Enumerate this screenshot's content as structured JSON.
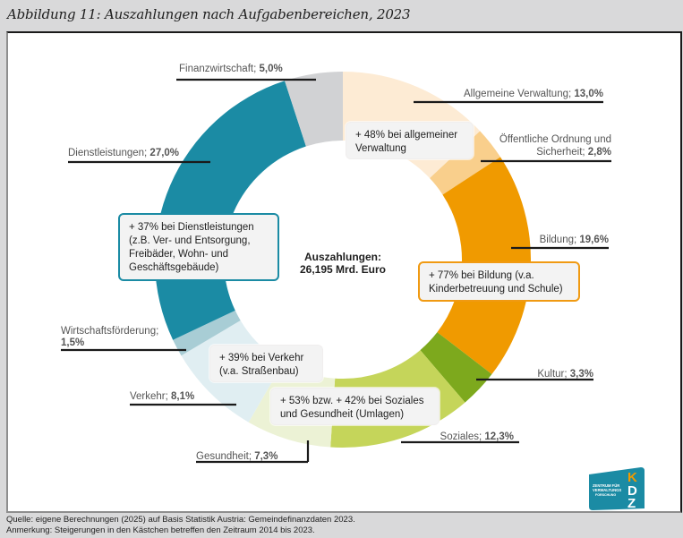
{
  "figure": {
    "title": "Abbildung 11: Auszahlungen nach Aufgabenbereichen, 2023",
    "footer": {
      "source": "Quelle: eigene Berechnungen (2025) auf Basis Statistik Austria: Gemeindefinanzdaten 2023.",
      "note": "Anmerkung: Steigerungen in den Kästchen betreffen den Zeitraum 2014 bis 2023."
    },
    "logo": {
      "letters": "KDZ",
      "text_lines": [
        "ZENTRUM FÜR",
        "VERWALTUNGS",
        "FORSCHUNG"
      ],
      "icon": "kdz-logo-icon"
    }
  },
  "chart_data": {
    "type": "pie",
    "variant": "donut",
    "title": "Auszahlungen nach Aufgabenbereichen, 2023",
    "center_label": {
      "line1": "Auszahlungen:",
      "line2": "26,195 Mrd. Euro"
    },
    "total_value": 26.195,
    "total_unit": "Mrd. Euro",
    "unit": "%",
    "start": "top",
    "direction": "clockwise",
    "slices": [
      {
        "name": "Allgemeine Verwaltung",
        "value": 13.0,
        "value_label": "13,0%",
        "color": "#fdebd4"
      },
      {
        "name": "Öffentliche Ordnung und Sicherheit",
        "value": 2.8,
        "value_label": "2,8%",
        "color": "#f9cf8c"
      },
      {
        "name": "Bildung",
        "value": 19.6,
        "value_label": "19,6%",
        "color": "#f09a00"
      },
      {
        "name": "Kultur",
        "value": 3.3,
        "value_label": "3,3%",
        "color": "#7da91d"
      },
      {
        "name": "Soziales",
        "value": 12.3,
        "value_label": "12,3%",
        "color": "#c5d55a"
      },
      {
        "name": "Gesundheit",
        "value": 7.3,
        "value_label": "7,3%",
        "color": "#ecf2d5"
      },
      {
        "name": "Verkehr",
        "value": 8.1,
        "value_label": "8,1%",
        "color": "#e0eef2"
      },
      {
        "name": "Wirtschaftsförderung",
        "value": 1.5,
        "value_label": "1,5%",
        "color": "#a8cdd5"
      },
      {
        "name": "Dienstleistungen",
        "value": 27.0,
        "value_label": "27,0%",
        "color": "#1b8ba4"
      },
      {
        "name": "Finanzwirtschaft",
        "value": 5.0,
        "value_label": "5,0%",
        "color": "#d1d2d4"
      }
    ],
    "slice_labels": [
      {
        "name_lines": [
          "Allgemeine Verwaltung; "
        ],
        "value_label": "13,0%"
      },
      {
        "name_lines": [
          "Öffentliche Ordnung und",
          "Sicherheit; "
        ],
        "value_label": "2,8%"
      },
      {
        "name_lines": [
          "Bildung; "
        ],
        "value_label": "19,6%"
      },
      {
        "name_lines": [
          "Kultur; "
        ],
        "value_label": "3,3%"
      },
      {
        "name_lines": [
          "Soziales; "
        ],
        "value_label": "12,3%"
      },
      {
        "name_lines": [
          "Gesundheit; "
        ],
        "value_label": "7,3%"
      },
      {
        "name_lines": [
          "Verkehr; "
        ],
        "value_label": "8,1%"
      },
      {
        "name_lines": [
          "Wirtschaftsförderung;",
          ""
        ],
        "value_label": "1,5%"
      },
      {
        "name_lines": [
          "Dienstleistungen; "
        ],
        "value_label": "27,0%"
      },
      {
        "name_lines": [
          "Finanzwirtschaft; "
        ],
        "value_label": "5,0%"
      }
    ],
    "annotations": [
      {
        "id": "verwaltung",
        "lines": [
          "+ 48% bei allgemeiner",
          "Verwaltung"
        ],
        "style": "plain"
      },
      {
        "id": "dienstleistungen",
        "lines": [
          "+ 37% bei Dienstleistungen",
          "(z.B. Ver- und Entsorgung,",
          "Freibäder, Wohn- und",
          "Geschäftsgebäude)"
        ],
        "style": "teal"
      },
      {
        "id": "bildung",
        "lines": [
          "+ 77% bei Bildung (v.a.",
          "Kinderbetreuung und Schule)"
        ],
        "style": "orange"
      },
      {
        "id": "verkehr",
        "lines": [
          "+ 39% bei Verkehr",
          "(v.a. Straßenbau)"
        ],
        "style": "plain"
      },
      {
        "id": "soziales-gesundheit",
        "lines": [
          "+ 53% bzw. + 42% bei Soziales",
          "und Gesundheit (Umlagen)"
        ],
        "style": "plain"
      }
    ],
    "legend": "none"
  }
}
